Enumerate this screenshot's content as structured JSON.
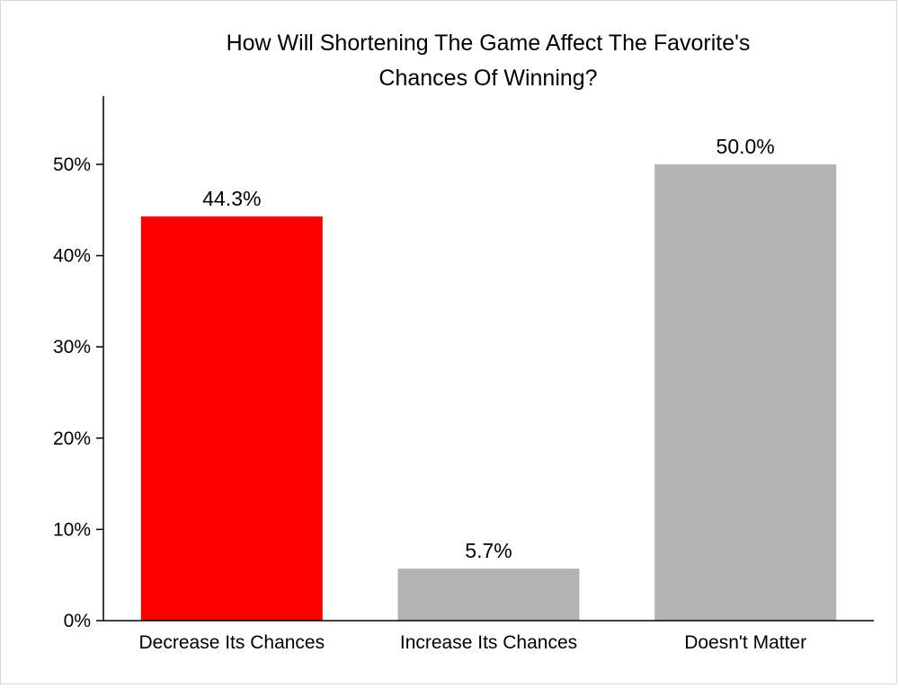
{
  "chart_data": {
    "type": "bar",
    "title_lines": [
      "How Will Shortening The Game Affect The Favorite's",
      "Chances Of Winning?"
    ],
    "categories": [
      "Decrease Its Chances",
      "Increase Its Chances",
      "Doesn't Matter"
    ],
    "values": [
      44.3,
      5.7,
      50.0
    ],
    "value_labels": [
      "44.3%",
      "5.7%",
      "50.0%"
    ],
    "colors": [
      "#ff0000",
      "#b3b3b3",
      "#b3b3b3"
    ],
    "ylim": [
      0,
      55
    ],
    "yticks": [
      0,
      10,
      20,
      30,
      40,
      50
    ],
    "ytick_labels": [
      "0%",
      "10%",
      "20%",
      "30%",
      "40%",
      "50%"
    ],
    "xlabel": "",
    "ylabel": "",
    "grid": false
  }
}
